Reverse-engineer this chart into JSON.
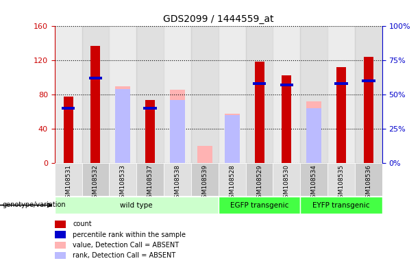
{
  "title": "GDS2099 / 1444559_at",
  "samples": [
    "GSM108531",
    "GSM108532",
    "GSM108533",
    "GSM108537",
    "GSM108538",
    "GSM108539",
    "GSM108528",
    "GSM108529",
    "GSM108530",
    "GSM108534",
    "GSM108535",
    "GSM108536"
  ],
  "count": [
    78,
    137,
    null,
    74,
    null,
    null,
    null,
    119,
    103,
    null,
    112,
    124
  ],
  "percentile_rank": [
    40,
    62,
    null,
    40,
    null,
    null,
    null,
    58,
    57,
    null,
    58,
    60
  ],
  "value_absent": [
    null,
    null,
    90,
    null,
    86,
    20,
    58,
    null,
    null,
    72,
    null,
    null
  ],
  "rank_absent": [
    null,
    null,
    54,
    null,
    46,
    null,
    35,
    null,
    null,
    40,
    null,
    null
  ],
  "groups": [
    {
      "label": "wild type",
      "start": 0,
      "end": 6,
      "color": "#ccffcc"
    },
    {
      "label": "EGFP transgenic",
      "start": 6,
      "end": 9,
      "color": "#44ff44"
    },
    {
      "label": "EYFP transgenic",
      "start": 9,
      "end": 12,
      "color": "#44ff44"
    }
  ],
  "ylim_left": [
    0,
    160
  ],
  "ylim_right": [
    0,
    100
  ],
  "yticks_left": [
    0,
    40,
    80,
    120,
    160
  ],
  "yticks_right": [
    0,
    25,
    50,
    75,
    100
  ],
  "ytick_labels_left": [
    "0",
    "40",
    "80",
    "120",
    "160"
  ],
  "ytick_labels_right": [
    "0%",
    "25%",
    "50%",
    "75%",
    "100%"
  ],
  "count_color": "#cc0000",
  "rank_color": "#0000cc",
  "value_absent_color": "#ffb3b3",
  "rank_absent_color": "#bbbbff",
  "bar_width": 0.35,
  "absent_bar_width": 0.55,
  "genotype_label": "genotype/variation",
  "legend_items": [
    {
      "color": "#cc0000",
      "label": "count"
    },
    {
      "color": "#0000cc",
      "label": "percentile rank within the sample"
    },
    {
      "color": "#ffb3b3",
      "label": "value, Detection Call = ABSENT"
    },
    {
      "color": "#bbbbff",
      "label": "rank, Detection Call = ABSENT"
    }
  ],
  "col_bg_even": "#e0e0e0",
  "col_bg_odd": "#cccccc"
}
